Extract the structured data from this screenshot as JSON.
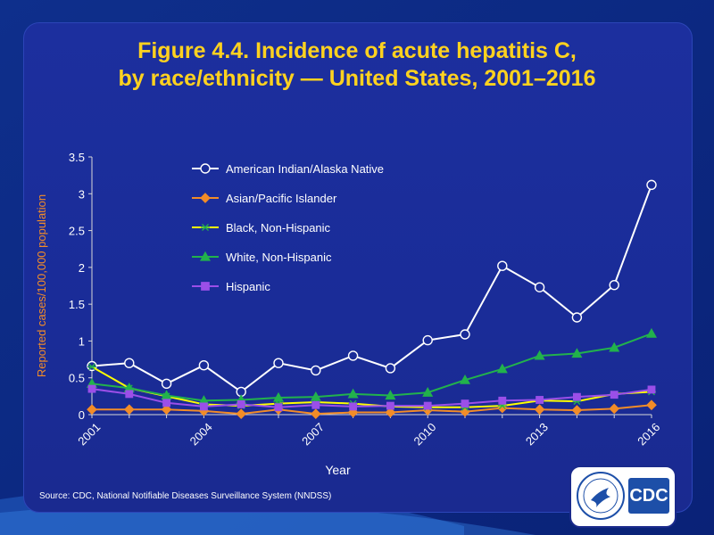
{
  "title": {
    "line1": "Figure 4.4. Incidence of acute hepatitis C,",
    "line2": "by race/ethnicity — United States, 2001–2016"
  },
  "source": "Source:  CDC, National Notifiable Diseases Surveillance System (NNDSS)",
  "logo": {
    "text": "CDC",
    "seal": "hhs-seal-icon"
  },
  "chart_data": {
    "type": "line",
    "xlabel": "Year",
    "ylabel": "Reported cases/100,000 population",
    "ylim": [
      0,
      3.5
    ],
    "yticks": [
      "0",
      "0.5",
      "1",
      "1.5",
      "2",
      "2.5",
      "3",
      "3.5"
    ],
    "x": [
      2001,
      2002,
      2003,
      2004,
      2005,
      2006,
      2007,
      2008,
      2009,
      2010,
      2011,
      2012,
      2013,
      2014,
      2015,
      2016
    ],
    "xtick_labels": [
      "2001",
      "2004",
      "2007",
      "2010",
      "2013",
      "2016"
    ],
    "grid": false,
    "legend_position": "top-left",
    "series": [
      {
        "name": "American Indian/Alaska Native",
        "color": "#ffffff",
        "marker": "circle",
        "values": [
          0.66,
          0.7,
          0.42,
          0.67,
          0.31,
          0.7,
          0.6,
          0.8,
          0.63,
          1.01,
          1.09,
          2.02,
          1.73,
          1.32,
          1.76,
          3.12
        ]
      },
      {
        "name": "Asian/Pacific Islander",
        "color": "#f28c28",
        "marker": "diamond",
        "values": [
          0.07,
          0.07,
          0.07,
          0.05,
          0.01,
          0.07,
          0.01,
          0.03,
          0.03,
          0.06,
          0.04,
          0.09,
          0.07,
          0.06,
          0.08,
          0.13
        ]
      },
      {
        "name": "Black, Non-Hispanic",
        "color": "#ffff00",
        "marker": "star",
        "values": [
          0.65,
          0.36,
          0.25,
          0.14,
          0.12,
          0.15,
          0.17,
          0.15,
          0.11,
          0.1,
          0.1,
          0.12,
          0.19,
          0.18,
          0.28,
          0.31
        ]
      },
      {
        "name": "White, Non-Hispanic",
        "color": "#22b24c",
        "marker": "triangle",
        "values": [
          0.42,
          0.36,
          0.26,
          0.19,
          0.2,
          0.23,
          0.24,
          0.28,
          0.26,
          0.3,
          0.47,
          0.62,
          0.8,
          0.83,
          0.91,
          1.1
        ]
      },
      {
        "name": "Hispanic",
        "color": "#9b4fe8",
        "marker": "square",
        "values": [
          0.35,
          0.28,
          0.16,
          0.11,
          0.14,
          0.1,
          0.13,
          0.11,
          0.12,
          0.12,
          0.15,
          0.19,
          0.2,
          0.24,
          0.27,
          0.34
        ]
      }
    ]
  }
}
